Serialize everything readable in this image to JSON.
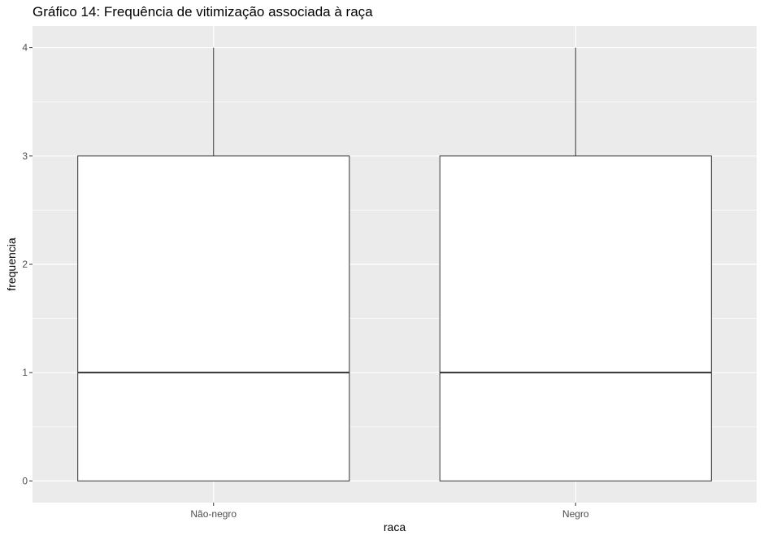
{
  "chart_data": {
    "type": "boxplot",
    "title": "Gráfico 14: Frequência de vitimização associada à raça",
    "xlabel": "raca",
    "ylabel": "frequencia",
    "ylim": [
      -0.2,
      4.2
    ],
    "y_ticks": [
      "0",
      "1",
      "2",
      "3",
      "4"
    ],
    "categories": [
      "Não-negro",
      "Negro"
    ],
    "boxes": [
      {
        "category": "Não-negro",
        "min": 0,
        "q1": 0,
        "median": 1,
        "q3": 3,
        "max": 4
      },
      {
        "category": "Negro",
        "min": 0,
        "q1": 0,
        "median": 1,
        "q3": 3,
        "max": 4
      }
    ],
    "grid": true,
    "colors": {
      "panel": "#ebebeb",
      "grid": "#ffffff",
      "box_fill": "#ffffff",
      "box_stroke": "#333333"
    }
  }
}
